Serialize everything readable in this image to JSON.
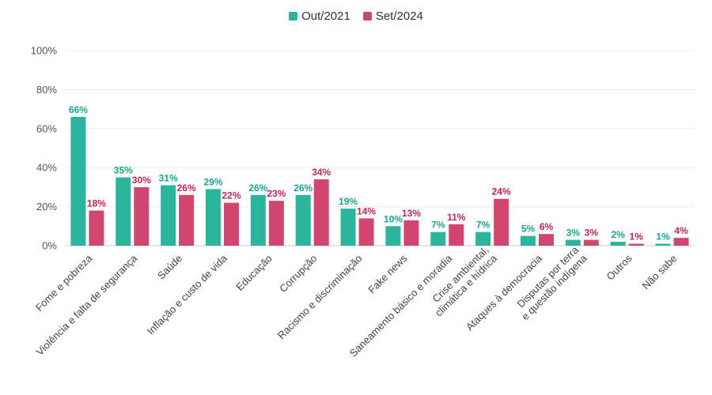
{
  "chart_data": {
    "type": "bar",
    "categories": [
      "Fome e pobreza",
      "Violência e falta de segurança",
      "Saúde",
      "Inflação e custo de vida",
      "Educação",
      "Corrupção",
      "Racismo e discriminação",
      "Fake news",
      "Saneamento básico e moradia",
      "Crise ambiental, climática e hídrica",
      "Ataques à democracia",
      "Disputas por terra e questão indígena",
      "Outros",
      "Não sabe"
    ],
    "series": [
      {
        "name": "Out/2021",
        "color": "#2ab59c",
        "values": [
          66,
          35,
          31,
          29,
          26,
          26,
          19,
          10,
          7,
          7,
          5,
          3,
          2,
          1
        ]
      },
      {
        "name": "Set/2024",
        "color": "#d1466f",
        "values": [
          18,
          30,
          26,
          22,
          23,
          34,
          14,
          13,
          11,
          24,
          6,
          3,
          1,
          4
        ]
      }
    ],
    "yticks": [
      "0%",
      "20%",
      "40%",
      "60%",
      "80%",
      "100%"
    ],
    "ylim": [
      0,
      100
    ],
    "value_suffix": "%",
    "grid": true,
    "legend_position": "top-center",
    "label_colors": [
      "#1aa58c",
      "#c0245a"
    ]
  }
}
